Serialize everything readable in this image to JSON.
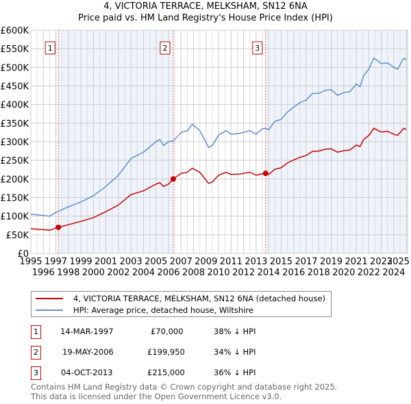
{
  "header": {
    "title": "4, VICTORIA TERRACE, MELKSHAM, SN12 6NA",
    "subtitle": "Price paid vs. HM Land Registry's House Price Index (HPI)"
  },
  "chart_data": {
    "type": "line",
    "title": "4, VICTORIA TERRACE, MELKSHAM, SN12 6NA",
    "subtitle": "Price paid vs. HM Land Registry's House Price Index (HPI)",
    "xlim": [
      1995,
      2025.1
    ],
    "ylim": [
      0,
      600000
    ],
    "x_ticks": [
      "1995",
      "1996",
      "1997",
      "1998",
      "1999",
      "2000",
      "2001",
      "2002",
      "2003",
      "2004",
      "2005",
      "2006",
      "2007",
      "2008",
      "2009",
      "2010",
      "2011",
      "2012",
      "2013",
      "2014",
      "2015",
      "2016",
      "2017",
      "2018",
      "2019",
      "2020",
      "2021",
      "2022",
      "2023",
      "2024",
      "2025"
    ],
    "y_ticks": [
      {
        "v": 0,
        "label": "£0"
      },
      {
        "v": 50000,
        "label": "£50K"
      },
      {
        "v": 100000,
        "label": "£100K"
      },
      {
        "v": 150000,
        "label": "£150K"
      },
      {
        "v": 200000,
        "label": "£200K"
      },
      {
        "v": 250000,
        "label": "£250K"
      },
      {
        "v": 300000,
        "label": "£300K"
      },
      {
        "v": 350000,
        "label": "£350K"
      },
      {
        "v": 400000,
        "label": "£400K"
      },
      {
        "v": 450000,
        "label": "£450K"
      },
      {
        "v": 500000,
        "label": "£500K"
      },
      {
        "v": 550000,
        "label": "£550K"
      },
      {
        "v": 600000,
        "label": "£600K"
      }
    ],
    "grid": true,
    "series": [
      {
        "name": "4, VICTORIA TERRACE, MELKSHAM, SN12 6NA (detached house)",
        "color": "#cc0000",
        "x": [
          1995,
          1996,
          1996.5,
          1997,
          1997.2,
          1998,
          1999,
          2000,
          2001,
          2002,
          2003,
          2004,
          2005,
          2005.3,
          2005.6,
          2006,
          2006.38,
          2007,
          2007.5,
          2007.9,
          2008.5,
          2009.2,
          2009.5,
          2010,
          2010.6,
          2011,
          2011.6,
          2012,
          2012.5,
          2013,
          2013.5,
          2013.76,
          2014,
          2014.5,
          2015,
          2015.5,
          2016,
          2016.5,
          2017,
          2017.5,
          2018,
          2018.5,
          2019,
          2019.5,
          2020,
          2020.5,
          2021,
          2021.3,
          2021.6,
          2022,
          2022.4,
          2022.7,
          2023,
          2023.5,
          2024,
          2024.3,
          2024.8,
          2025
        ],
        "y": [
          66000,
          64000,
          62000,
          68000,
          70000,
          77000,
          86000,
          96000,
          112000,
          130000,
          158000,
          168000,
          186000,
          190000,
          180000,
          186000,
          199950,
          215000,
          218000,
          229000,
          218000,
          188000,
          192000,
          210000,
          218000,
          212000,
          213000,
          215000,
          218000,
          210000,
          214000,
          215000,
          212000,
          226000,
          230000,
          243000,
          251000,
          258000,
          263000,
          274000,
          275000,
          280000,
          281000,
          272000,
          276000,
          278000,
          291000,
          287000,
          306000,
          317000,
          336000,
          331000,
          326000,
          328000,
          320000,
          317000,
          336000,
          333000
        ]
      },
      {
        "name": "HPI: Average price, detached house, Wiltshire",
        "color": "#5b8fd4",
        "x": [
          1995,
          1996,
          1996.5,
          1997,
          1997.2,
          1998,
          1999,
          2000,
          2001,
          2002,
          2003,
          2004,
          2005,
          2005.3,
          2005.6,
          2006,
          2006.38,
          2007,
          2007.5,
          2007.9,
          2008.5,
          2009.2,
          2009.5,
          2010,
          2010.6,
          2011,
          2011.6,
          2012,
          2012.5,
          2013,
          2013.5,
          2013.76,
          2014,
          2014.5,
          2015,
          2015.5,
          2016,
          2016.5,
          2017,
          2017.5,
          2018,
          2018.5,
          2019,
          2019.5,
          2020,
          2020.5,
          2021,
          2021.3,
          2021.6,
          2022,
          2022.4,
          2022.7,
          2023,
          2023.5,
          2024,
          2024.3,
          2024.8,
          2025
        ],
        "y": [
          105000,
          102000,
          100000,
          110000,
          113000,
          125000,
          138000,
          155000,
          180000,
          210000,
          255000,
          272000,
          300000,
          306000,
          290000,
          300000,
          302000,
          325000,
          330000,
          347000,
          330000,
          285000,
          290000,
          318000,
          330000,
          320000,
          322000,
          325000,
          330000,
          320000,
          335000,
          336000,
          332000,
          355000,
          360000,
          380000,
          393000,
          405000,
          412000,
          430000,
          430000,
          438000,
          440000,
          425000,
          432000,
          435000,
          455000,
          448000,
          478000,
          495000,
          525000,
          518000,
          510000,
          512000,
          500000,
          495000,
          525000,
          520000
        ]
      }
    ],
    "sales": [
      {
        "label": "1",
        "date_x": 1997.2,
        "price": 70000
      },
      {
        "label": "2",
        "date_x": 2006.38,
        "price": 199950
      },
      {
        "label": "3",
        "date_x": 2013.76,
        "price": 215000
      }
    ]
  },
  "legend": {
    "items": [
      {
        "label": "4, VICTORIA TERRACE, MELKSHAM, SN12 6NA (detached house)",
        "color": "#cc0000"
      },
      {
        "label": "HPI: Average price, detached house, Wiltshire",
        "color": "#5b8fd4"
      }
    ]
  },
  "transactions": [
    {
      "num": "1",
      "date": "14-MAR-1997",
      "price": "£70,000",
      "hpi": "38% ↓ HPI"
    },
    {
      "num": "2",
      "date": "19-MAY-2006",
      "price": "£199,950",
      "hpi": "34% ↓ HPI"
    },
    {
      "num": "3",
      "date": "04-OCT-2013",
      "price": "£215,000",
      "hpi": "36% ↓ HPI"
    }
  ],
  "footer": {
    "line1": "Contains HM Land Registry data © Crown copyright and database right 2025.",
    "line2": "This data is licensed under the Open Government Licence v3.0."
  }
}
